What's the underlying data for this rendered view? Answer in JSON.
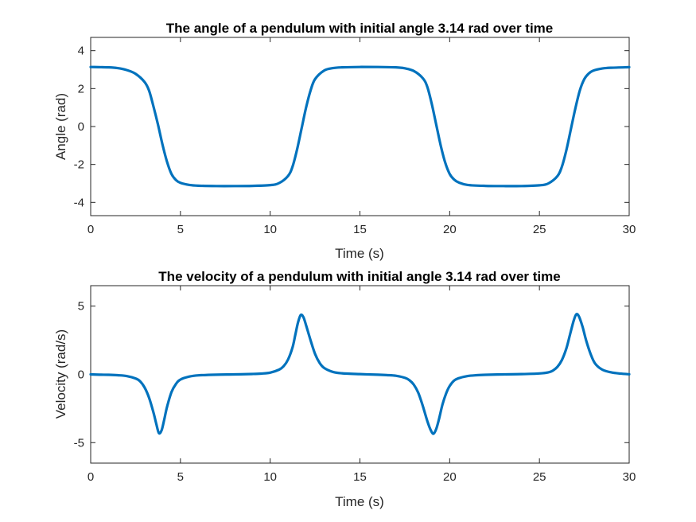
{
  "chart_data": [
    {
      "type": "line",
      "title": "The angle of a pendulum with initial angle 3.14 rad over time",
      "xlabel": "Time (s)",
      "ylabel": "Angle (rad)",
      "xlim": [
        0,
        30
      ],
      "ylim": [
        -4.7,
        4.7
      ],
      "xticks": [
        0,
        5,
        10,
        15,
        20,
        25,
        30
      ],
      "yticks": [
        -4,
        -2,
        0,
        2,
        4
      ],
      "grid": false,
      "color": "#0072BD",
      "x": [
        0,
        1,
        1.5,
        2,
        2.5,
        3,
        3.25,
        3.5,
        3.75,
        4,
        4.25,
        4.5,
        4.75,
        5,
        5.5,
        6,
        7,
        8,
        9,
        10,
        10.5,
        11,
        11.25,
        11.5,
        11.75,
        12,
        12.25,
        12.5,
        13,
        13.5,
        14,
        15,
        16,
        17,
        17.5,
        18,
        18.5,
        18.75,
        19,
        19.25,
        19.5,
        19.75,
        20,
        20.25,
        20.5,
        21,
        22,
        23,
        24,
        25,
        25.5,
        26,
        26.25,
        26.5,
        26.75,
        27,
        27.25,
        27.5,
        27.75,
        28,
        28.5,
        29,
        30
      ],
      "y": [
        3.14,
        3.12,
        3.08,
        2.98,
        2.78,
        2.35,
        1.9,
        1.05,
        0.1,
        -0.95,
        -1.85,
        -2.5,
        -2.82,
        -2.97,
        -3.08,
        -3.12,
        -3.14,
        -3.14,
        -3.13,
        -3.09,
        -2.98,
        -2.6,
        -2.1,
        -1.2,
        -0.1,
        1.0,
        1.9,
        2.5,
        2.95,
        3.08,
        3.12,
        3.14,
        3.14,
        3.12,
        3.07,
        2.93,
        2.55,
        2.1,
        1.2,
        0.1,
        -1.0,
        -1.9,
        -2.5,
        -2.8,
        -2.95,
        -3.08,
        -3.13,
        -3.14,
        -3.14,
        -3.1,
        -3.0,
        -2.62,
        -2.12,
        -1.25,
        -0.15,
        0.95,
        1.9,
        2.5,
        2.8,
        2.95,
        3.06,
        3.1,
        3.13
      ]
    },
    {
      "type": "line",
      "title": "The velocity of a pendulum with initial angle 3.14 rad over time",
      "xlabel": "Time (s)",
      "ylabel": "Velocity (rad/s)",
      "xlim": [
        0,
        30
      ],
      "ylim": [
        -6.5,
        6.5
      ],
      "xticks": [
        0,
        5,
        10,
        15,
        20,
        25,
        30
      ],
      "yticks": [
        -5,
        0,
        5
      ],
      "grid": false,
      "color": "#0072BD",
      "x": [
        0,
        0.5,
        1,
        1.5,
        2,
        2.5,
        2.75,
        3,
        3.25,
        3.5,
        3.65,
        3.8,
        3.95,
        4.1,
        4.25,
        4.5,
        4.75,
        5,
        5.5,
        6,
        7,
        8,
        9,
        9.5,
        10,
        10.5,
        10.75,
        11,
        11.25,
        11.4,
        11.55,
        11.7,
        11.85,
        12,
        12.25,
        12.5,
        12.75,
        13,
        13.5,
        14,
        15,
        16,
        16.5,
        17,
        17.5,
        17.75,
        18,
        18.25,
        18.5,
        18.75,
        18.95,
        19.1,
        19.25,
        19.4,
        19.6,
        19.8,
        20,
        20.25,
        20.5,
        21,
        21.5,
        22,
        23,
        24,
        25,
        25.5,
        25.75,
        26,
        26.25,
        26.5,
        26.7,
        26.9,
        27.05,
        27.2,
        27.4,
        27.6,
        27.85,
        28.1,
        28.5,
        29,
        29.5,
        30
      ],
      "y": [
        0.0,
        -0.02,
        -0.03,
        -0.06,
        -0.12,
        -0.3,
        -0.5,
        -0.95,
        -1.7,
        -2.8,
        -3.6,
        -4.3,
        -4.1,
        -3.3,
        -2.4,
        -1.3,
        -0.7,
        -0.38,
        -0.16,
        -0.07,
        -0.02,
        0.0,
        0.03,
        0.06,
        0.13,
        0.35,
        0.6,
        1.1,
        2.0,
        2.9,
        3.8,
        4.35,
        4.2,
        3.6,
        2.5,
        1.5,
        0.85,
        0.48,
        0.18,
        0.08,
        0.02,
        -0.02,
        -0.05,
        -0.1,
        -0.25,
        -0.42,
        -0.75,
        -1.35,
        -2.3,
        -3.4,
        -4.1,
        -4.35,
        -4.0,
        -3.3,
        -2.2,
        -1.4,
        -0.85,
        -0.45,
        -0.28,
        -0.12,
        -0.06,
        -0.03,
        0.0,
        0.02,
        0.07,
        0.15,
        0.28,
        0.55,
        1.05,
        1.9,
        2.9,
        3.9,
        4.4,
        4.25,
        3.5,
        2.5,
        1.5,
        0.8,
        0.35,
        0.15,
        0.06,
        0.01
      ]
    }
  ]
}
